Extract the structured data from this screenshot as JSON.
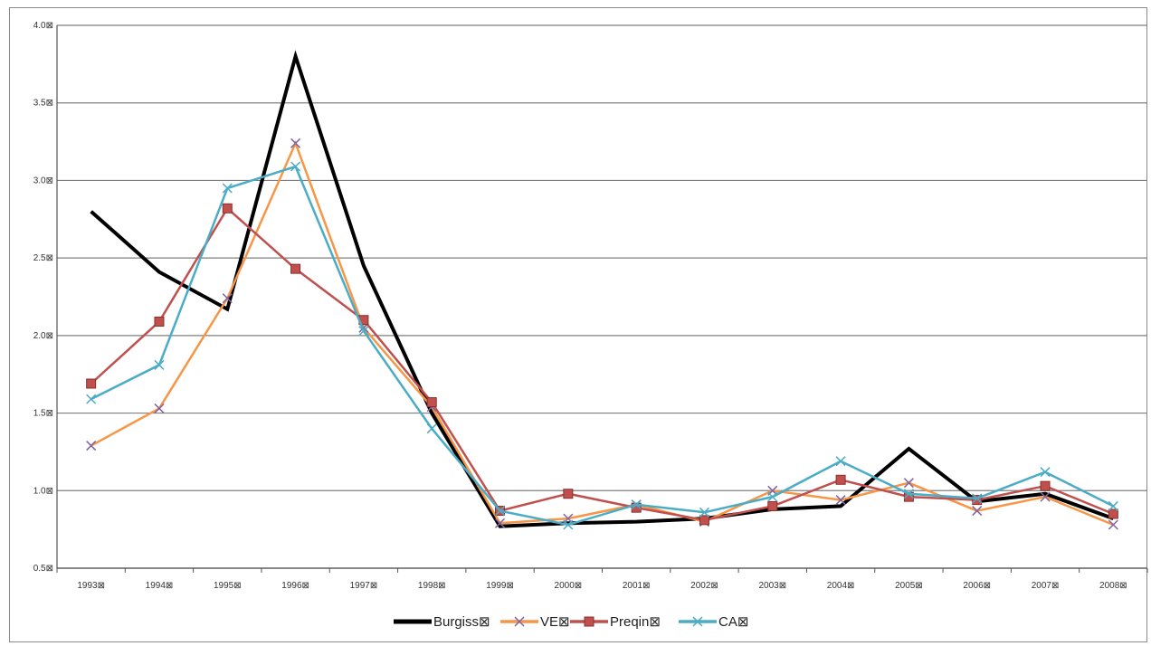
{
  "chart_data": {
    "type": "line",
    "title": "",
    "xlabel": "",
    "ylabel": "",
    "categories": [
      "1993",
      "1994",
      "1995",
      "1996",
      "1997",
      "1998",
      "1999",
      "2000",
      "2001",
      "2002",
      "2003",
      "2004",
      "2005",
      "2006",
      "2007",
      "2008"
    ],
    "category_labels": [
      "1993⊠",
      "1994⊠",
      "1995⊠",
      "1996⊠",
      "1997⊠",
      "1998⊠",
      "1999⊠",
      "2000⊠",
      "2001⊠",
      "2002⊠",
      "2003⊠",
      "2004⊠",
      "2005⊠",
      "2006⊠",
      "2007⊠",
      "2008⊠"
    ],
    "ylim": [
      0.5,
      4.0
    ],
    "yticks": [
      0.5,
      1.0,
      1.5,
      2.0,
      2.5,
      3.0,
      3.5,
      4.0
    ],
    "ytick_labels": [
      "0.5⊠",
      "1.0⊠",
      "1.5⊠",
      "2.0⊠",
      "2.5⊠",
      "3.0⊠",
      "3.5⊠",
      "4.0⊠"
    ],
    "grid": true,
    "legend_position": "bottom",
    "series": [
      {
        "name": "Burgiss⊠",
        "color": "#000000",
        "marker": "none",
        "width": 4,
        "values": [
          2.8,
          2.41,
          2.17,
          3.8,
          2.45,
          1.5,
          0.77,
          0.79,
          0.8,
          0.82,
          0.88,
          0.9,
          1.27,
          0.93,
          0.98,
          0.82
        ]
      },
      {
        "name": "VE⊠",
        "color": "#f79646",
        "marker": "x",
        "width": 2.5,
        "values": [
          1.29,
          1.53,
          2.24,
          3.24,
          2.05,
          1.54,
          0.79,
          0.82,
          0.91,
          0.8,
          1.0,
          0.94,
          1.05,
          0.87,
          0.96,
          0.78
        ]
      },
      {
        "name": "Preqin⊠",
        "color": "#c0504d",
        "marker": "square",
        "width": 2.5,
        "values": [
          1.69,
          2.09,
          2.82,
          2.43,
          2.1,
          1.57,
          0.87,
          0.98,
          0.89,
          0.81,
          0.9,
          1.07,
          0.96,
          0.94,
          1.03,
          0.85
        ]
      },
      {
        "name": "CA⊠",
        "color": "#4bacc6",
        "marker": "x",
        "width": 2.5,
        "values": [
          1.59,
          1.81,
          2.95,
          3.09,
          2.03,
          1.4,
          0.87,
          0.78,
          0.91,
          0.86,
          0.96,
          1.19,
          0.98,
          0.95,
          1.12,
          0.9
        ]
      }
    ]
  }
}
